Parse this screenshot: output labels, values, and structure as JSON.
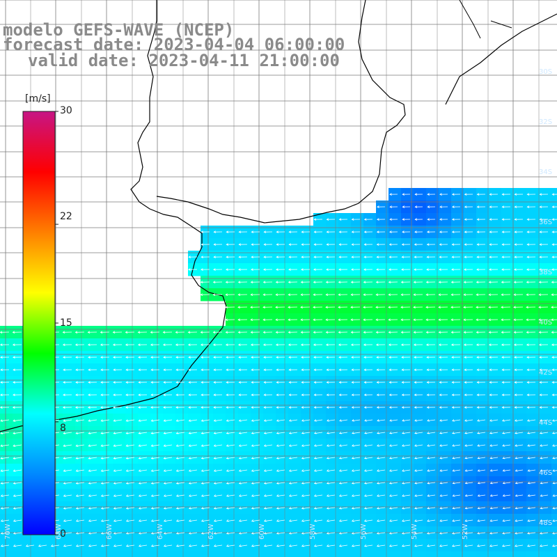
{
  "title": {
    "line1": "modelo GEFS-WAVE (NCEP)",
    "line2": "forecast date: 2023-04-04 06:00:00",
    "line3": "valid date: 2023-04-11 21:00:00"
  },
  "colorbar": {
    "unit_label": "[m/s]",
    "min": 0,
    "max": 30,
    "tick_labels": [
      "30",
      "22",
      "15",
      "8",
      "0"
    ],
    "tick_values": [
      30,
      22,
      15,
      8,
      0
    ],
    "colors": [
      "#0000ff",
      "#0088ff",
      "#00ffff",
      "#00ff00",
      "#ffff00",
      "#ff7f00",
      "#ff0000",
      "#c71585"
    ]
  },
  "map": {
    "grid_line_color": "#7a7a7a",
    "land_color": "#ffffff",
    "coast_color": "#000000",
    "arrow_color": "#ffffff",
    "right_lat_labels": [
      "30S",
      "32S",
      "34S",
      "36S",
      "38S",
      "40S",
      "42S",
      "44S",
      "46S",
      "48S"
    ],
    "bottom_lon_labels": [
      "70W",
      "68W",
      "66W",
      "64W",
      "62W",
      "60W",
      "58W",
      "56W",
      "54W",
      "52W"
    ]
  }
}
